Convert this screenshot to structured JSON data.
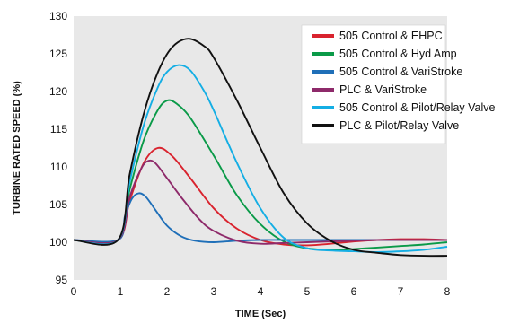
{
  "chart_data": {
    "type": "line",
    "xlabel": "TIME (Sec)",
    "ylabel": "TURBINE RATED SPEED (%)",
    "xlim": [
      0,
      8
    ],
    "ylim": [
      95,
      130
    ],
    "xticks": [
      0,
      1,
      2,
      3,
      4,
      5,
      6,
      7,
      8
    ],
    "yticks": [
      95,
      100,
      105,
      110,
      115,
      120,
      125,
      130
    ],
    "plot_background": "#e8e8e8",
    "grid": false,
    "legend_position": "top-right",
    "series": [
      {
        "name": "505 Control & EHPC",
        "color": "#d9232e",
        "x": [
          0,
          0.95,
          1.2,
          1.5,
          1.8,
          2.1,
          2.5,
          3.0,
          3.5,
          4.0,
          4.5,
          5.0,
          5.5,
          6.0,
          6.5,
          7.0,
          7.5,
          8.0
        ],
        "y": [
          100.3,
          100.3,
          105.5,
          110.5,
          112.5,
          111.5,
          108.5,
          104.5,
          101.8,
          100.3,
          99.7,
          99.6,
          99.8,
          100.1,
          100.3,
          100.4,
          100.4,
          100.3
        ]
      },
      {
        "name": "505 Control & Hyd Amp",
        "color": "#0a9a48",
        "x": [
          0,
          0.95,
          1.2,
          1.5,
          1.8,
          2.0,
          2.2,
          2.5,
          3.0,
          3.5,
          4.0,
          4.5,
          5.0,
          5.5,
          6.0,
          6.5,
          7.0,
          7.5,
          8.0
        ],
        "y": [
          100.3,
          100.3,
          107.0,
          113.5,
          117.5,
          118.8,
          118.4,
          116.5,
          111.5,
          106.2,
          102.4,
          100.1,
          99.2,
          99.0,
          99.1,
          99.3,
          99.5,
          99.7,
          100.0
        ]
      },
      {
        "name": "505 Control & VariStroke",
        "color": "#1f6fb8",
        "x": [
          0,
          0.95,
          1.1,
          1.25,
          1.4,
          1.55,
          1.75,
          2.0,
          2.3,
          2.6,
          3.0,
          3.5,
          4.0,
          4.5,
          5.0,
          5.5,
          6.0,
          6.5,
          7.0,
          7.5,
          8.0
        ],
        "y": [
          100.3,
          100.3,
          103.5,
          105.8,
          106.5,
          106.0,
          104.3,
          102.2,
          100.8,
          100.2,
          100.0,
          100.2,
          100.3,
          100.3,
          100.3,
          100.3,
          100.3,
          100.3,
          100.3,
          100.3,
          100.3
        ]
      },
      {
        "name": "PLC & VariStroke",
        "color": "#8e2a6a",
        "x": [
          0,
          0.95,
          1.2,
          1.45,
          1.6,
          1.75,
          2.0,
          2.3,
          2.7,
          3.0,
          3.5,
          4.0,
          4.5,
          5.0,
          5.5,
          6.0,
          6.5,
          7.0,
          7.5,
          8.0
        ],
        "y": [
          100.3,
          100.3,
          106.0,
          109.8,
          110.8,
          110.5,
          108.5,
          106.0,
          103.0,
          101.5,
          100.2,
          99.8,
          99.9,
          100.0,
          100.1,
          100.2,
          100.3,
          100.3,
          100.3,
          100.3
        ]
      },
      {
        "name": "505 Control & Pilot/Relay Valve",
        "color": "#14aee4",
        "x": [
          0,
          0.95,
          1.2,
          1.5,
          1.8,
          2.0,
          2.25,
          2.5,
          2.8,
          3.0,
          3.5,
          4.0,
          4.5,
          5.0,
          5.5,
          6.0,
          6.5,
          7.0,
          7.5,
          8.0
        ],
        "y": [
          100.3,
          100.3,
          108.0,
          115.5,
          120.5,
          122.6,
          123.5,
          122.8,
          120.0,
          117.5,
          110.5,
          104.5,
          100.6,
          99.2,
          98.9,
          98.8,
          98.7,
          98.8,
          99.0,
          99.4
        ]
      },
      {
        "name": "PLC & Pilot/Relay Valve",
        "color": "#111111",
        "x": [
          0,
          0.95,
          1.2,
          1.5,
          1.8,
          2.1,
          2.45,
          2.8,
          3.0,
          3.5,
          4.0,
          4.5,
          5.0,
          5.5,
          6.0,
          6.5,
          7.0,
          7.5,
          8.0
        ],
        "y": [
          100.3,
          100.3,
          109.0,
          117.0,
          122.5,
          125.8,
          127.0,
          126.0,
          124.5,
          118.8,
          112.5,
          106.5,
          102.5,
          100.2,
          99.0,
          98.6,
          98.3,
          98.2,
          98.2
        ]
      }
    ]
  }
}
